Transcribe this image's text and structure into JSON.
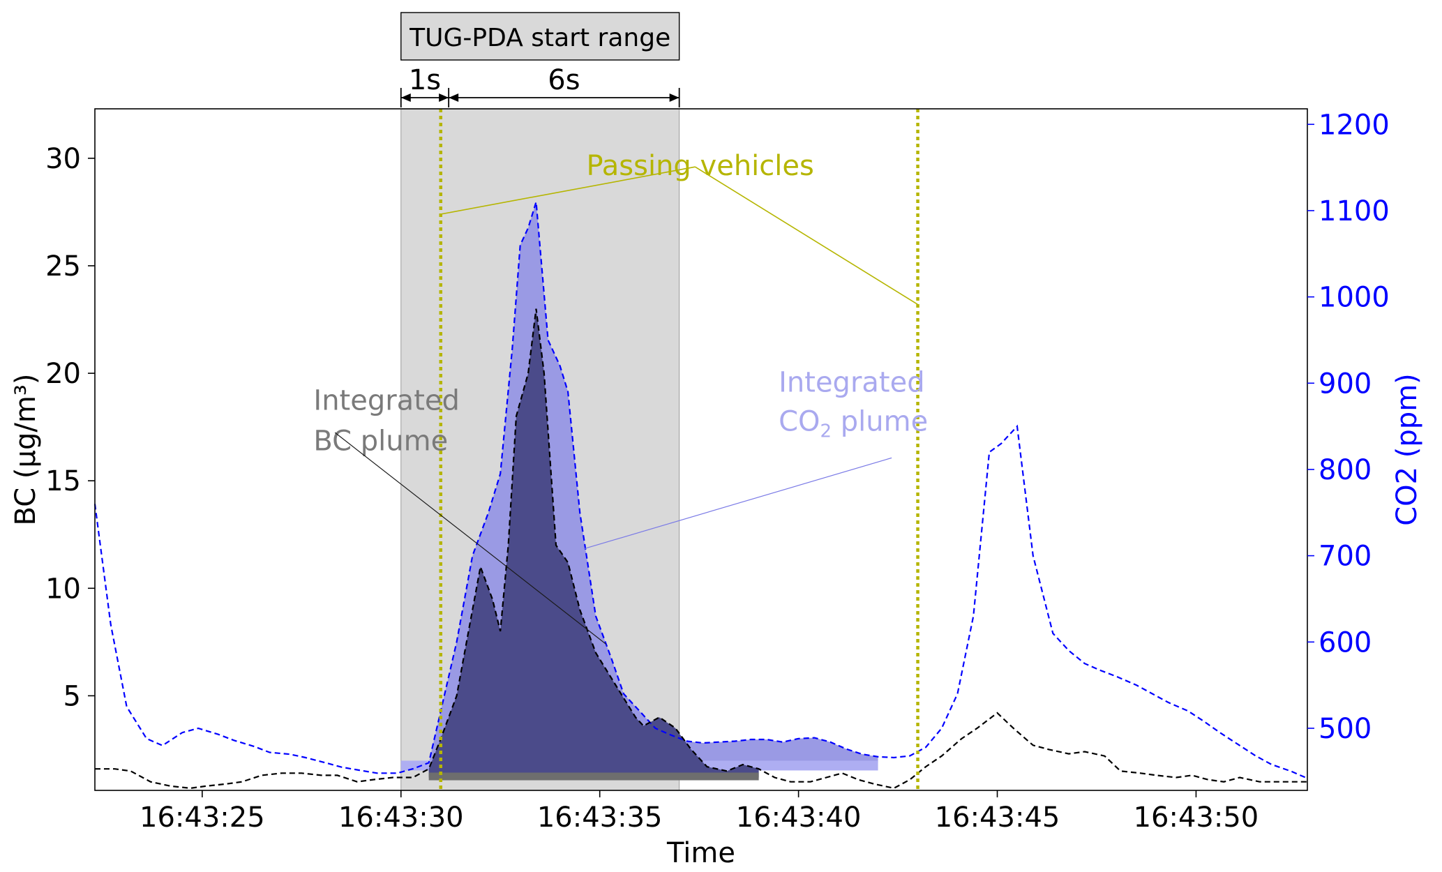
{
  "chart_data": {
    "type": "line",
    "xlabel": "Time",
    "ylabel_left": "BC (µg/m³)",
    "ylabel_right": "CO2 (ppm)",
    "xlim": [
      "16:43:22.3",
      "16:43:52.8"
    ],
    "ylim_left": [
      0.6,
      32.3
    ],
    "ylim_right": [
      428,
      1218
    ],
    "xticks": [
      {
        "t": "16:43:25",
        "label": "16:43:25"
      },
      {
        "t": "16:43:30",
        "label": "16:43:30"
      },
      {
        "t": "16:43:35",
        "label": "16:43:35"
      },
      {
        "t": "16:43:40",
        "label": "16:43:40"
      },
      {
        "t": "16:43:45",
        "label": "16:43:45"
      },
      {
        "t": "16:43:50",
        "label": "16:43:50"
      }
    ],
    "yticks_left": [
      5,
      10,
      15,
      20,
      25,
      30
    ],
    "yticks_right": [
      500,
      600,
      700,
      800,
      900,
      1000,
      1100,
      1200
    ],
    "colors": {
      "bc": "#000000",
      "co2": "#0000ff",
      "bc_fill": "#4b4b8a",
      "co2_fill": "#9a9ae4",
      "co2_fill_flat": "#aeaef2",
      "bc_flat": "#6e6e6e",
      "vehicle": "#b5b500",
      "start_range": "#d9d9d9",
      "bc_label": "#7a7a7a",
      "co2_label": "#a9a9ef"
    },
    "series": [
      {
        "name": "CO2 (ppm)",
        "axis": "right",
        "style": "dashed",
        "points": [
          [
            "16:43:22.3",
            760
          ],
          [
            "16:43:22.7",
            620
          ],
          [
            "16:43:23.1",
            525
          ],
          [
            "16:43:23.6",
            488
          ],
          [
            "16:43:24.0",
            480
          ],
          [
            "16:43:24.5",
            495
          ],
          [
            "16:43:24.9",
            500
          ],
          [
            "16:43:25.4",
            493
          ],
          [
            "16:43:25.8",
            486
          ],
          [
            "16:43:26.3",
            479
          ],
          [
            "16:43:26.7",
            472
          ],
          [
            "16:43:27.2",
            470
          ],
          [
            "16:43:27.6",
            466
          ],
          [
            "16:43:28.1",
            460
          ],
          [
            "16:43:28.5",
            455
          ],
          [
            "16:43:29.0",
            451
          ],
          [
            "16:43:29.4",
            448
          ],
          [
            "16:43:29.9",
            448
          ],
          [
            "16:43:30.3",
            453
          ],
          [
            "16:43:30.7",
            460
          ],
          [
            "16:43:31.0",
            520
          ],
          [
            "16:43:31.4",
            600
          ],
          [
            "16:43:31.8",
            700
          ],
          [
            "16:43:32.2",
            750
          ],
          [
            "16:43:32.5",
            795
          ],
          [
            "16:43:32.8",
            940
          ],
          [
            "16:43:33.0",
            1060
          ],
          [
            "16:43:33.2",
            1080
          ],
          [
            "16:43:33.4",
            1110
          ],
          [
            "16:43:33.7",
            950
          ],
          [
            "16:43:34.0",
            920
          ],
          [
            "16:43:34.2",
            890
          ],
          [
            "16:43:34.5",
            750
          ],
          [
            "16:43:34.9",
            630
          ],
          [
            "16:43:35.3",
            580
          ],
          [
            "16:43:35.6",
            540
          ],
          [
            "16:43:36.0",
            520
          ],
          [
            "16:43:36.4",
            500
          ],
          [
            "16:43:36.8",
            492
          ],
          [
            "16:43:37.2",
            485
          ],
          [
            "16:43:37.6",
            483
          ],
          [
            "16:43:38.0",
            484
          ],
          [
            "16:43:38.4",
            485
          ],
          [
            "16:43:38.8",
            487
          ],
          [
            "16:43:39.2",
            487
          ],
          [
            "16:43:39.6",
            484
          ],
          [
            "16:43:40.0",
            488
          ],
          [
            "16:43:40.4",
            489
          ],
          [
            "16:43:40.8",
            484
          ],
          [
            "16:43:41.2",
            476
          ],
          [
            "16:43:41.6",
            470
          ],
          [
            "16:43:42.0",
            467
          ],
          [
            "16:43:42.4",
            466
          ],
          [
            "16:43:42.8",
            468
          ],
          [
            "16:43:43.2",
            478
          ],
          [
            "16:43:43.6",
            500
          ],
          [
            "16:43:44.0",
            540
          ],
          [
            "16:43:44.4",
            630
          ],
          [
            "16:43:44.8",
            820
          ],
          [
            "16:43:45.1",
            830
          ],
          [
            "16:43:45.5",
            850
          ],
          [
            "16:43:45.9",
            700
          ],
          [
            "16:43:46.4",
            610
          ],
          [
            "16:43:46.8",
            590
          ],
          [
            "16:43:47.2",
            575
          ],
          [
            "16:43:47.6",
            567
          ],
          [
            "16:43:48.0",
            560
          ],
          [
            "16:43:48.5",
            550
          ],
          [
            "16:43:48.9",
            540
          ],
          [
            "16:43:49.3",
            530
          ],
          [
            "16:43:49.8",
            520
          ],
          [
            "16:43:50.2",
            508
          ],
          [
            "16:43:50.6",
            495
          ],
          [
            "16:43:51.1",
            480
          ],
          [
            "16:43:51.5",
            468
          ],
          [
            "16:43:51.9",
            458
          ],
          [
            "16:43:52.4",
            450
          ],
          [
            "16:43:52.8",
            442
          ]
        ]
      },
      {
        "name": "BC (µg/m³)",
        "axis": "left",
        "style": "dashed",
        "points": [
          [
            "16:43:22.3",
            1.6
          ],
          [
            "16:43:22.8",
            1.6
          ],
          [
            "16:43:23.2",
            1.5
          ],
          [
            "16:43:23.7",
            1.0
          ],
          [
            "16:43:24.2",
            0.8
          ],
          [
            "16:43:24.7",
            0.7
          ],
          [
            "16:43:25.1",
            0.8
          ],
          [
            "16:43:25.6",
            0.9
          ],
          [
            "16:43:26.0",
            1.0
          ],
          [
            "16:43:26.5",
            1.3
          ],
          [
            "16:43:27.0",
            1.4
          ],
          [
            "16:43:27.5",
            1.4
          ],
          [
            "16:43:28.0",
            1.3
          ],
          [
            "16:43:28.4",
            1.3
          ],
          [
            "16:43:28.9",
            1.0
          ],
          [
            "16:43:29.3",
            1.1
          ],
          [
            "16:43:29.8",
            1.2
          ],
          [
            "16:43:30.3",
            1.2
          ],
          [
            "16:43:30.7",
            1.6
          ],
          [
            "16:43:31.0",
            3.0
          ],
          [
            "16:43:31.4",
            5.0
          ],
          [
            "16:43:31.7",
            8.0
          ],
          [
            "16:43:32.0",
            11.0
          ],
          [
            "16:43:32.3",
            9.5
          ],
          [
            "16:43:32.5",
            8.0
          ],
          [
            "16:43:32.7",
            12.0
          ],
          [
            "16:43:32.9",
            18.0
          ],
          [
            "16:43:33.2",
            20.0
          ],
          [
            "16:43:33.4",
            23.0
          ],
          [
            "16:43:33.6",
            20.0
          ],
          [
            "16:43:33.9",
            12.0
          ],
          [
            "16:43:34.2",
            11.2
          ],
          [
            "16:43:34.5",
            9.0
          ],
          [
            "16:43:34.9",
            7.0
          ],
          [
            "16:43:35.4",
            5.5
          ],
          [
            "16:43:35.9",
            4.0
          ],
          [
            "16:43:36.1",
            3.6
          ],
          [
            "16:43:36.5",
            4.0
          ],
          [
            "16:43:36.9",
            3.5
          ],
          [
            "16:43:37.3",
            2.5
          ],
          [
            "16:43:37.7",
            1.7
          ],
          [
            "16:43:38.2",
            1.5
          ],
          [
            "16:43:38.6",
            1.8
          ],
          [
            "16:43:39.0",
            1.6
          ],
          [
            "16:43:39.4",
            1.2
          ],
          [
            "16:43:39.8",
            1.0
          ],
          [
            "16:43:40.3",
            1.0
          ],
          [
            "16:43:40.7",
            1.2
          ],
          [
            "16:43:41.1",
            1.4
          ],
          [
            "16:43:41.5",
            1.1
          ],
          [
            "16:43:41.9",
            0.9
          ],
          [
            "16:43:42.4",
            0.7
          ],
          [
            "16:43:42.8",
            1.1
          ],
          [
            "16:43:43.2",
            1.7
          ],
          [
            "16:43:43.6",
            2.2
          ],
          [
            "16:43:44.1",
            3.0
          ],
          [
            "16:43:44.5",
            3.5
          ],
          [
            "16:43:45.0",
            4.2
          ],
          [
            "16:43:45.4",
            3.5
          ],
          [
            "16:43:45.9",
            2.7
          ],
          [
            "16:43:46.3",
            2.5
          ],
          [
            "16:43:46.8",
            2.3
          ],
          [
            "16:43:47.2",
            2.4
          ],
          [
            "16:43:47.7",
            2.2
          ],
          [
            "16:43:48.1",
            1.5
          ],
          [
            "16:43:48.6",
            1.4
          ],
          [
            "16:43:49.0",
            1.3
          ],
          [
            "16:43:49.5",
            1.2
          ],
          [
            "16:43:49.9",
            1.3
          ],
          [
            "16:43:50.3",
            1.1
          ],
          [
            "16:43:50.7",
            1.0
          ],
          [
            "16:43:51.1",
            1.2
          ],
          [
            "16:43:51.6",
            1.0
          ],
          [
            "16:43:52.0",
            1.0
          ],
          [
            "16:43:52.4",
            1.0
          ],
          [
            "16:43:52.8",
            1.0
          ]
        ]
      }
    ],
    "start_range": {
      "from": "16:43:30.0",
      "to": "16:43:37.0",
      "label": "TUG-PDA start range",
      "segments": [
        {
          "from": "16:43:30.0",
          "to": "16:43:31.2",
          "label": "1s"
        },
        {
          "from": "16:43:31.2",
          "to": "16:43:37.0",
          "label": "6s"
        }
      ]
    },
    "vehicle_lines": [
      "16:43:31.0",
      "16:43:43.0"
    ],
    "annotations": {
      "passing_vehicles": {
        "text": "Passing vehicles",
        "at": [
          "16:43:37.0",
          30.0
        ],
        "points_to": [
          [
            "16:43:31.0",
            27.4
          ],
          [
            "16:43:43.0",
            23.2
          ]
        ]
      },
      "bc_plume": {
        "lines": [
          "Integrated",
          "BC plume"
        ],
        "at": [
          "16:43:27.8",
          18.3
        ],
        "arrow_from": [
          "16:43:28.2",
          17.5
        ],
        "arrow_to": [
          "16:43:35.3",
          7.4
        ]
      },
      "co2_plume": {
        "line1": "Integrated",
        "line2_pre": "CO",
        "line2_sub": "2",
        "line2_post": " plume",
        "at": [
          "16:43:39.5",
          890
        ],
        "arrow_from": [
          "16:43:40.5",
          870
        ],
        "arrow_to": [
          "16:43:34.6",
          708
        ]
      }
    },
    "integrated_co2": {
      "from": "16:43:30.7",
      "to": "16:43:42.0",
      "baseline": 460
    },
    "integrated_bc": {
      "from": "16:43:30.7",
      "to": "16:43:39.0",
      "baseline": 1.2
    }
  }
}
